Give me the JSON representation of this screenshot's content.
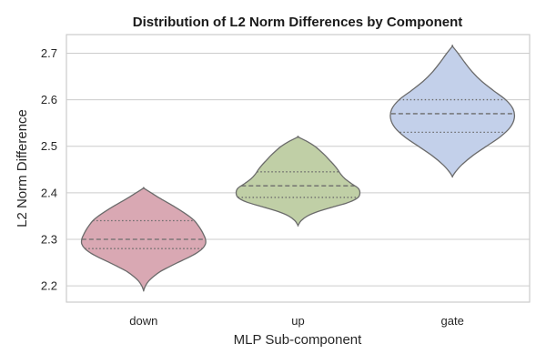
{
  "chart_data": {
    "type": "violin",
    "title": "Distribution of L2 Norm Differences by Component",
    "xlabel": "MLP Sub-component",
    "ylabel": "L2 Norm Difference",
    "ylim": [
      2.165,
      2.74
    ],
    "yticks": [
      2.2,
      2.3,
      2.4,
      2.5,
      2.6,
      2.7
    ],
    "ytick_labels": [
      "2.2",
      "2.3",
      "2.4",
      "2.5",
      "2.6",
      "2.7"
    ],
    "grid": true,
    "categories": [
      "down",
      "up",
      "gate"
    ],
    "colors": [
      "#d9a8b3",
      "#c0cfa6",
      "#c3d0ea"
    ],
    "edge_color": "#6b6b6b",
    "violins": [
      {
        "category": "down",
        "min": 2.19,
        "q1": 2.28,
        "median": 2.3,
        "q3": 2.34,
        "max": 2.41,
        "profile": [
          [
            2.19,
            0.0
          ],
          [
            2.2,
            0.03
          ],
          [
            2.21,
            0.08
          ],
          [
            2.22,
            0.16
          ],
          [
            2.23,
            0.26
          ],
          [
            2.24,
            0.4
          ],
          [
            2.25,
            0.55
          ],
          [
            2.26,
            0.71
          ],
          [
            2.27,
            0.85
          ],
          [
            2.28,
            0.95
          ],
          [
            2.29,
            1.0
          ],
          [
            2.3,
            1.0
          ],
          [
            2.31,
            0.97
          ],
          [
            2.32,
            0.93
          ],
          [
            2.33,
            0.88
          ],
          [
            2.34,
            0.82
          ],
          [
            2.35,
            0.73
          ],
          [
            2.36,
            0.62
          ],
          [
            2.37,
            0.5
          ],
          [
            2.38,
            0.37
          ],
          [
            2.39,
            0.24
          ],
          [
            2.4,
            0.12
          ],
          [
            2.41,
            0.0
          ]
        ]
      },
      {
        "category": "up",
        "min": 2.33,
        "q1": 2.39,
        "median": 2.415,
        "q3": 2.445,
        "max": 2.52,
        "profile": [
          [
            2.33,
            0.0
          ],
          [
            2.34,
            0.05
          ],
          [
            2.35,
            0.15
          ],
          [
            2.36,
            0.33
          ],
          [
            2.37,
            0.58
          ],
          [
            2.38,
            0.83
          ],
          [
            2.39,
            0.97
          ],
          [
            2.4,
            1.0
          ],
          [
            2.41,
            0.97
          ],
          [
            2.42,
            0.86
          ],
          [
            2.43,
            0.76
          ],
          [
            2.44,
            0.69
          ],
          [
            2.45,
            0.64
          ],
          [
            2.46,
            0.58
          ],
          [
            2.47,
            0.51
          ],
          [
            2.48,
            0.44
          ],
          [
            2.49,
            0.36
          ],
          [
            2.5,
            0.27
          ],
          [
            2.51,
            0.15
          ],
          [
            2.52,
            0.0
          ]
        ]
      },
      {
        "category": "gate",
        "min": 2.435,
        "q1": 2.53,
        "median": 2.57,
        "q3": 2.6,
        "max": 2.715,
        "profile": [
          [
            2.435,
            0.0
          ],
          [
            2.445,
            0.05
          ],
          [
            2.46,
            0.15
          ],
          [
            2.48,
            0.33
          ],
          [
            2.5,
            0.55
          ],
          [
            2.52,
            0.77
          ],
          [
            2.54,
            0.93
          ],
          [
            2.56,
            1.0
          ],
          [
            2.58,
            0.98
          ],
          [
            2.6,
            0.86
          ],
          [
            2.62,
            0.66
          ],
          [
            2.64,
            0.47
          ],
          [
            2.66,
            0.32
          ],
          [
            2.68,
            0.2
          ],
          [
            2.7,
            0.09
          ],
          [
            2.715,
            0.0
          ]
        ]
      }
    ]
  }
}
